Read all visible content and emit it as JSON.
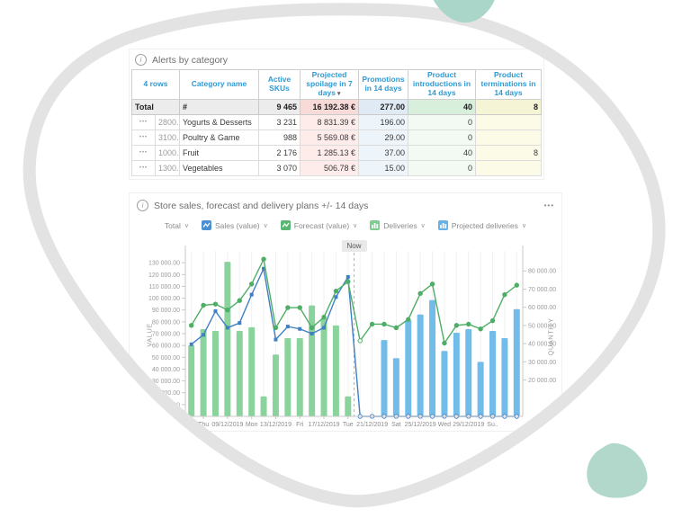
{
  "page": {
    "background": "#ffffff",
    "blob_border_color": "#e3e3e3",
    "accent_teal": "#a9d6c8"
  },
  "icons": {
    "info": "i",
    "kebab": "•••",
    "caret": "∨",
    "sort_desc": "▾",
    "row_menu": "•••"
  },
  "alerts_card": {
    "title": "Alerts by category",
    "table": {
      "row_count_label": "4 rows",
      "columns": [
        "Category name",
        "Active SKUs",
        "Projected spoilage in 7 days",
        "Promotions in 14 days",
        "Product introductions in 14 days",
        "Product terminations in 14 days"
      ],
      "sorted_column": "Projected spoilage in 7 days",
      "total": {
        "label": "Total",
        "category": "#",
        "active_skus": "9 465",
        "spoilage": "16 192.38 €",
        "promotions": "277.00",
        "introductions": "40",
        "terminations": "8"
      },
      "rows": [
        {
          "code": "2800...",
          "category": "Yogurts & Desserts",
          "active_skus": "3 231",
          "spoilage": "8 831.39 €",
          "promotions": "196.00",
          "introductions": "0",
          "terminations": ""
        },
        {
          "code": "3100...",
          "category": "Poultry & Game",
          "active_skus": "988",
          "spoilage": "5 569.08 €",
          "promotions": "29.00",
          "introductions": "0",
          "terminations": ""
        },
        {
          "code": "1000...",
          "category": "Fruit",
          "active_skus": "2 176",
          "spoilage": "1 285.13 €",
          "promotions": "37.00",
          "introductions": "40",
          "terminations": "8"
        },
        {
          "code": "1300...",
          "category": "Vegetables",
          "active_skus": "3 070",
          "spoilage": "506.78 €",
          "promotions": "15.00",
          "introductions": "0",
          "terminations": ""
        }
      ]
    }
  },
  "chart_card": {
    "title": "Store sales, forecast and delivery plans +/- 14 days",
    "now_label": "Now",
    "legend": [
      {
        "label": "Total"
      },
      {
        "label": "Sales (value)",
        "swatch": "line",
        "color": "#4a90d2"
      },
      {
        "label": "Forecast (value)",
        "swatch": "line",
        "color": "#58b773"
      },
      {
        "label": "Deliveries",
        "swatch": "bars",
        "color": "#7fcb90"
      },
      {
        "label": "Projected deliveries",
        "swatch": "bars",
        "color": "#64b3e2"
      }
    ]
  },
  "chart_data": {
    "type": "bar",
    "subtype": "dual-axis bar+line combo",
    "title": "Store sales, forecast and delivery plans +/- 14 days",
    "n_days": 28,
    "now_index": 14,
    "x_tick_labels": [
      "Thu",
      "09/12/2019",
      "Mon",
      "13/12/2019",
      "Fri",
      "17/12/2019",
      "Tue",
      "21/12/2019",
      "Sat",
      "25/12/2019",
      "Wed",
      "29/12/2019",
      "Su.."
    ],
    "x_tick_slots": [
      1,
      3,
      5,
      7,
      9,
      11,
      13,
      15,
      17,
      19,
      21,
      23,
      25
    ],
    "left_axis": {
      "label": "VALUE",
      "min": 0,
      "max": 140000,
      "ticks": [
        10000,
        20000,
        30000,
        40000,
        50000,
        60000,
        70000,
        80000,
        90000,
        100000,
        110000,
        120000,
        130000
      ]
    },
    "right_axis": {
      "label": "QUANTITY",
      "min": 0,
      "max": 91000,
      "ticks": [
        20000,
        30000,
        40000,
        50000,
        60000,
        70000,
        80000
      ]
    },
    "series": [
      {
        "name": "Sales (value)",
        "kind": "line",
        "axis": "left",
        "color": "#3f7fc4",
        "marker": "square",
        "hollow_from": 14,
        "values": [
          61000,
          69000,
          89000,
          75000,
          79000,
          103000,
          125000,
          65000,
          76000,
          74000,
          70000,
          75000,
          101000,
          118000,
          0,
          0,
          0,
          0,
          0,
          0,
          0,
          0,
          0,
          0,
          0,
          0,
          0,
          0
        ]
      },
      {
        "name": "Forecast (value)",
        "kind": "line",
        "axis": "left",
        "color": "#4fae66",
        "marker": "circle",
        "hollow_at": 14,
        "values": [
          77000,
          94000,
          95000,
          90000,
          98000,
          112000,
          133000,
          75000,
          92000,
          92000,
          75000,
          84000,
          106000,
          114000,
          64000,
          78000,
          78000,
          75000,
          82000,
          104000,
          112000,
          62000,
          77000,
          78000,
          74000,
          81000,
          103000,
          111000
        ]
      },
      {
        "name": "Deliveries",
        "kind": "bar",
        "axis": "right",
        "color": "#8bd39c",
        "values": [
          39000,
          48000,
          47000,
          85000,
          47000,
          49000,
          11000,
          34000,
          43000,
          43000,
          61000,
          54000,
          50000,
          11000,
          null,
          null,
          null,
          null,
          null,
          null,
          null,
          null,
          null,
          null,
          null,
          null,
          null,
          null
        ]
      },
      {
        "name": "Projected deliveries",
        "kind": "bar",
        "axis": "right",
        "color": "#72bce9",
        "values": [
          null,
          null,
          null,
          null,
          null,
          null,
          null,
          null,
          null,
          null,
          null,
          null,
          null,
          null,
          null,
          null,
          42000,
          32000,
          53000,
          56000,
          64000,
          36000,
          46000,
          48000,
          30000,
          47000,
          43000,
          59000
        ]
      }
    ]
  }
}
